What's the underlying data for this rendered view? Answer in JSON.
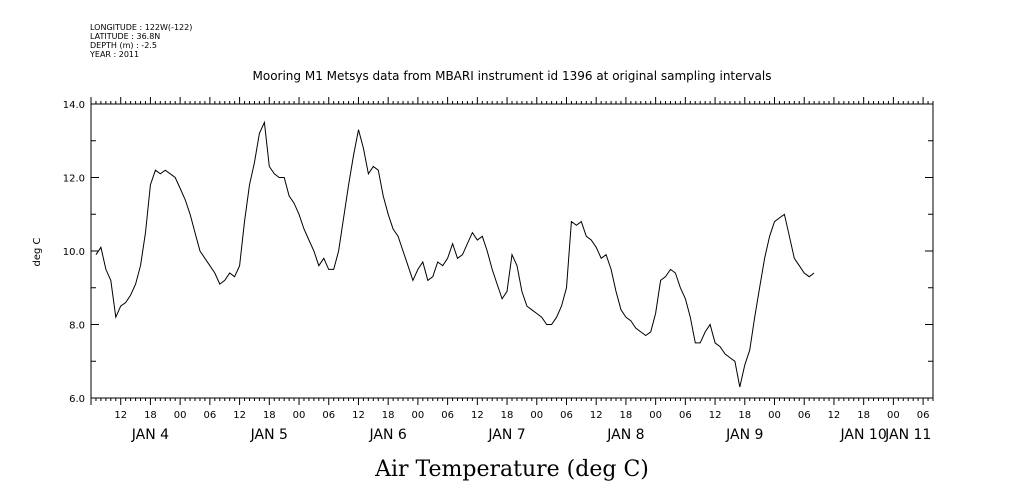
{
  "header": {
    "longitude": "LONGITUDE : 122W(-122)",
    "latitude": "LATITUDE : 36.8N",
    "depth": "DEPTH (m) : -2.5",
    "year": "YEAR : 2011"
  },
  "chart_data": {
    "type": "line",
    "title": "Mooring M1 Metsys data from MBARI instrument id 1396 at original sampling intervals",
    "xlabel": "Air Temperature (deg C)",
    "ylabel": "deg C",
    "ylim": [
      6.0,
      14.0
    ],
    "yticks": [
      "6.0",
      "8.0",
      "10.0",
      "12.0",
      "14.0"
    ],
    "xlim_hours": [
      0,
      170
    ],
    "hour_tick_labels": [
      "12",
      "18",
      "00",
      "06",
      "12",
      "18",
      "00",
      "06",
      "12",
      "18",
      "00",
      "06",
      "12",
      "18",
      "00",
      "06",
      "12",
      "18",
      "00",
      "06",
      "12",
      "18",
      "00",
      "06",
      "12",
      "18",
      "00",
      "06"
    ],
    "day_labels": [
      "JAN  4",
      "JAN  5",
      "JAN  6",
      "JAN  7",
      "JAN  8",
      "JAN  9",
      "JAN 10",
      "JAN 11"
    ],
    "series": [
      {
        "color": "#000000",
        "points": [
          [
            1,
            9.9
          ],
          [
            2,
            10.1
          ],
          [
            3,
            9.5
          ],
          [
            4,
            9.2
          ],
          [
            5,
            8.2
          ],
          [
            6,
            8.5
          ],
          [
            7,
            8.6
          ],
          [
            8,
            8.8
          ],
          [
            9,
            9.1
          ],
          [
            10,
            9.6
          ],
          [
            11,
            10.5
          ],
          [
            12,
            11.8
          ],
          [
            13,
            12.2
          ],
          [
            14,
            12.1
          ],
          [
            15,
            12.2
          ],
          [
            16,
            12.1
          ],
          [
            17,
            12.0
          ],
          [
            18,
            11.7
          ],
          [
            19,
            11.4
          ],
          [
            20,
            11.0
          ],
          [
            21,
            10.5
          ],
          [
            22,
            10.0
          ],
          [
            23,
            9.8
          ],
          [
            24,
            9.6
          ],
          [
            25,
            9.4
          ],
          [
            26,
            9.1
          ],
          [
            27,
            9.2
          ],
          [
            28,
            9.4
          ],
          [
            29,
            9.3
          ],
          [
            30,
            9.6
          ],
          [
            31,
            10.8
          ],
          [
            32,
            11.8
          ],
          [
            33,
            12.4
          ],
          [
            34,
            13.2
          ],
          [
            35,
            13.5
          ],
          [
            36,
            12.3
          ],
          [
            37,
            12.1
          ],
          [
            38,
            12.0
          ],
          [
            39,
            12.0
          ],
          [
            40,
            11.5
          ],
          [
            41,
            11.3
          ],
          [
            42,
            11.0
          ],
          [
            43,
            10.6
          ],
          [
            44,
            10.3
          ],
          [
            45,
            10.0
          ],
          [
            46,
            9.6
          ],
          [
            47,
            9.8
          ],
          [
            48,
            9.5
          ],
          [
            49,
            9.5
          ],
          [
            50,
            10.0
          ],
          [
            51,
            10.9
          ],
          [
            52,
            11.8
          ],
          [
            53,
            12.6
          ],
          [
            54,
            13.3
          ],
          [
            55,
            12.8
          ],
          [
            56,
            12.1
          ],
          [
            57,
            12.3
          ],
          [
            58,
            12.2
          ],
          [
            59,
            11.5
          ],
          [
            60,
            11.0
          ],
          [
            61,
            10.6
          ],
          [
            62,
            10.4
          ],
          [
            63,
            10.0
          ],
          [
            64,
            9.6
          ],
          [
            65,
            9.2
          ],
          [
            66,
            9.5
          ],
          [
            67,
            9.7
          ],
          [
            68,
            9.2
          ],
          [
            69,
            9.3
          ],
          [
            70,
            9.7
          ],
          [
            71,
            9.6
          ],
          [
            72,
            9.8
          ],
          [
            73,
            10.2
          ],
          [
            74,
            9.8
          ],
          [
            75,
            9.9
          ],
          [
            76,
            10.2
          ],
          [
            77,
            10.5
          ],
          [
            78,
            10.3
          ],
          [
            79,
            10.4
          ],
          [
            80,
            10.0
          ],
          [
            81,
            9.5
          ],
          [
            82,
            9.1
          ],
          [
            83,
            8.7
          ],
          [
            84,
            8.9
          ],
          [
            85,
            9.9
          ],
          [
            86,
            9.6
          ],
          [
            87,
            8.9
          ],
          [
            88,
            8.5
          ],
          [
            89,
            8.4
          ],
          [
            90,
            8.3
          ],
          [
            91,
            8.2
          ],
          [
            92,
            8.0
          ],
          [
            93,
            8.0
          ],
          [
            94,
            8.2
          ],
          [
            95,
            8.5
          ],
          [
            96,
            9.0
          ],
          [
            97,
            10.8
          ],
          [
            98,
            10.7
          ],
          [
            99,
            10.8
          ],
          [
            100,
            10.4
          ],
          [
            101,
            10.3
          ],
          [
            102,
            10.1
          ],
          [
            103,
            9.8
          ],
          [
            104,
            9.9
          ],
          [
            105,
            9.5
          ],
          [
            106,
            8.9
          ],
          [
            107,
            8.4
          ],
          [
            108,
            8.2
          ],
          [
            109,
            8.1
          ],
          [
            110,
            7.9
          ],
          [
            111,
            7.8
          ],
          [
            112,
            7.7
          ],
          [
            113,
            7.8
          ],
          [
            114,
            8.3
          ],
          [
            115,
            9.2
          ],
          [
            116,
            9.3
          ],
          [
            117,
            9.5
          ],
          [
            118,
            9.4
          ],
          [
            119,
            9.0
          ],
          [
            120,
            8.7
          ],
          [
            121,
            8.2
          ],
          [
            122,
            7.5
          ],
          [
            123,
            7.5
          ],
          [
            124,
            7.8
          ],
          [
            125,
            8.0
          ],
          [
            126,
            7.5
          ],
          [
            127,
            7.4
          ],
          [
            128,
            7.2
          ],
          [
            129,
            7.1
          ],
          [
            130,
            7.0
          ],
          [
            131,
            6.3
          ],
          [
            132,
            6.9
          ],
          [
            133,
            7.3
          ],
          [
            134,
            8.2
          ],
          [
            135,
            9.0
          ],
          [
            136,
            9.8
          ],
          [
            137,
            10.4
          ],
          [
            138,
            10.8
          ],
          [
            139,
            10.9
          ],
          [
            140,
            11.0
          ],
          [
            141,
            10.4
          ],
          [
            142,
            9.8
          ],
          [
            143,
            9.6
          ],
          [
            144,
            9.4
          ],
          [
            145,
            9.3
          ],
          [
            146,
            9.4
          ]
        ]
      }
    ]
  }
}
